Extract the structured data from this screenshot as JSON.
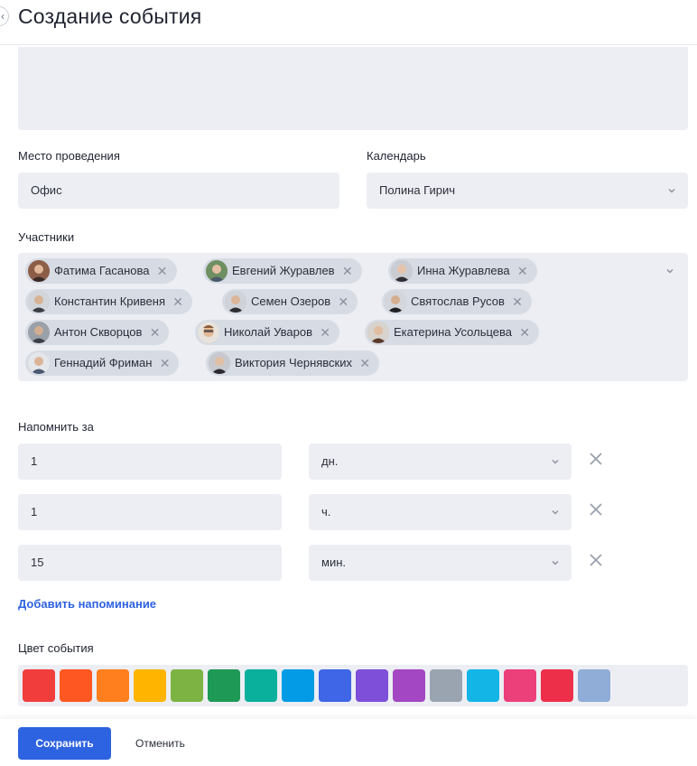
{
  "header": {
    "title": "Создание события"
  },
  "location": {
    "label": "Место проведения",
    "value": "Офис"
  },
  "calendar": {
    "label": "Календарь",
    "value": "Полина Гирич"
  },
  "participants": {
    "label": "Участники",
    "items": [
      {
        "name": "Фатима Гасанова"
      },
      {
        "name": "Евгений Журавлев"
      },
      {
        "name": "Инна Журавлева"
      },
      {
        "name": "Константин Кривеня"
      },
      {
        "name": "Семен Озеров"
      },
      {
        "name": "Святослав Русов"
      },
      {
        "name": "Антон Скворцов"
      },
      {
        "name": "Николай Уваров"
      },
      {
        "name": "Екатерина Усольцева"
      },
      {
        "name": "Геннадий Фриман"
      },
      {
        "name": "Виктория Чернявских"
      }
    ]
  },
  "reminders": {
    "label": "Напомнить за",
    "items": [
      {
        "value": "1",
        "unit": "дн."
      },
      {
        "value": "1",
        "unit": "ч."
      },
      {
        "value": "15",
        "unit": "мин."
      }
    ],
    "add_label": "Добавить напоминание"
  },
  "event_color": {
    "label": "Цвет события",
    "colors": [
      "#f23d3d",
      "#ff5722",
      "#ff7f1f",
      "#ffb400",
      "#7cb342",
      "#1e9956",
      "#0bb09c",
      "#039be5",
      "#3e66e6",
      "#7e4fd9",
      "#a347c2",
      "#9aa4b0",
      "#13b4e6",
      "#ec407a",
      "#ee2f4a",
      "#8fadd6"
    ]
  },
  "footer": {
    "save_label": "Сохранить",
    "cancel_label": "Отменить"
  }
}
